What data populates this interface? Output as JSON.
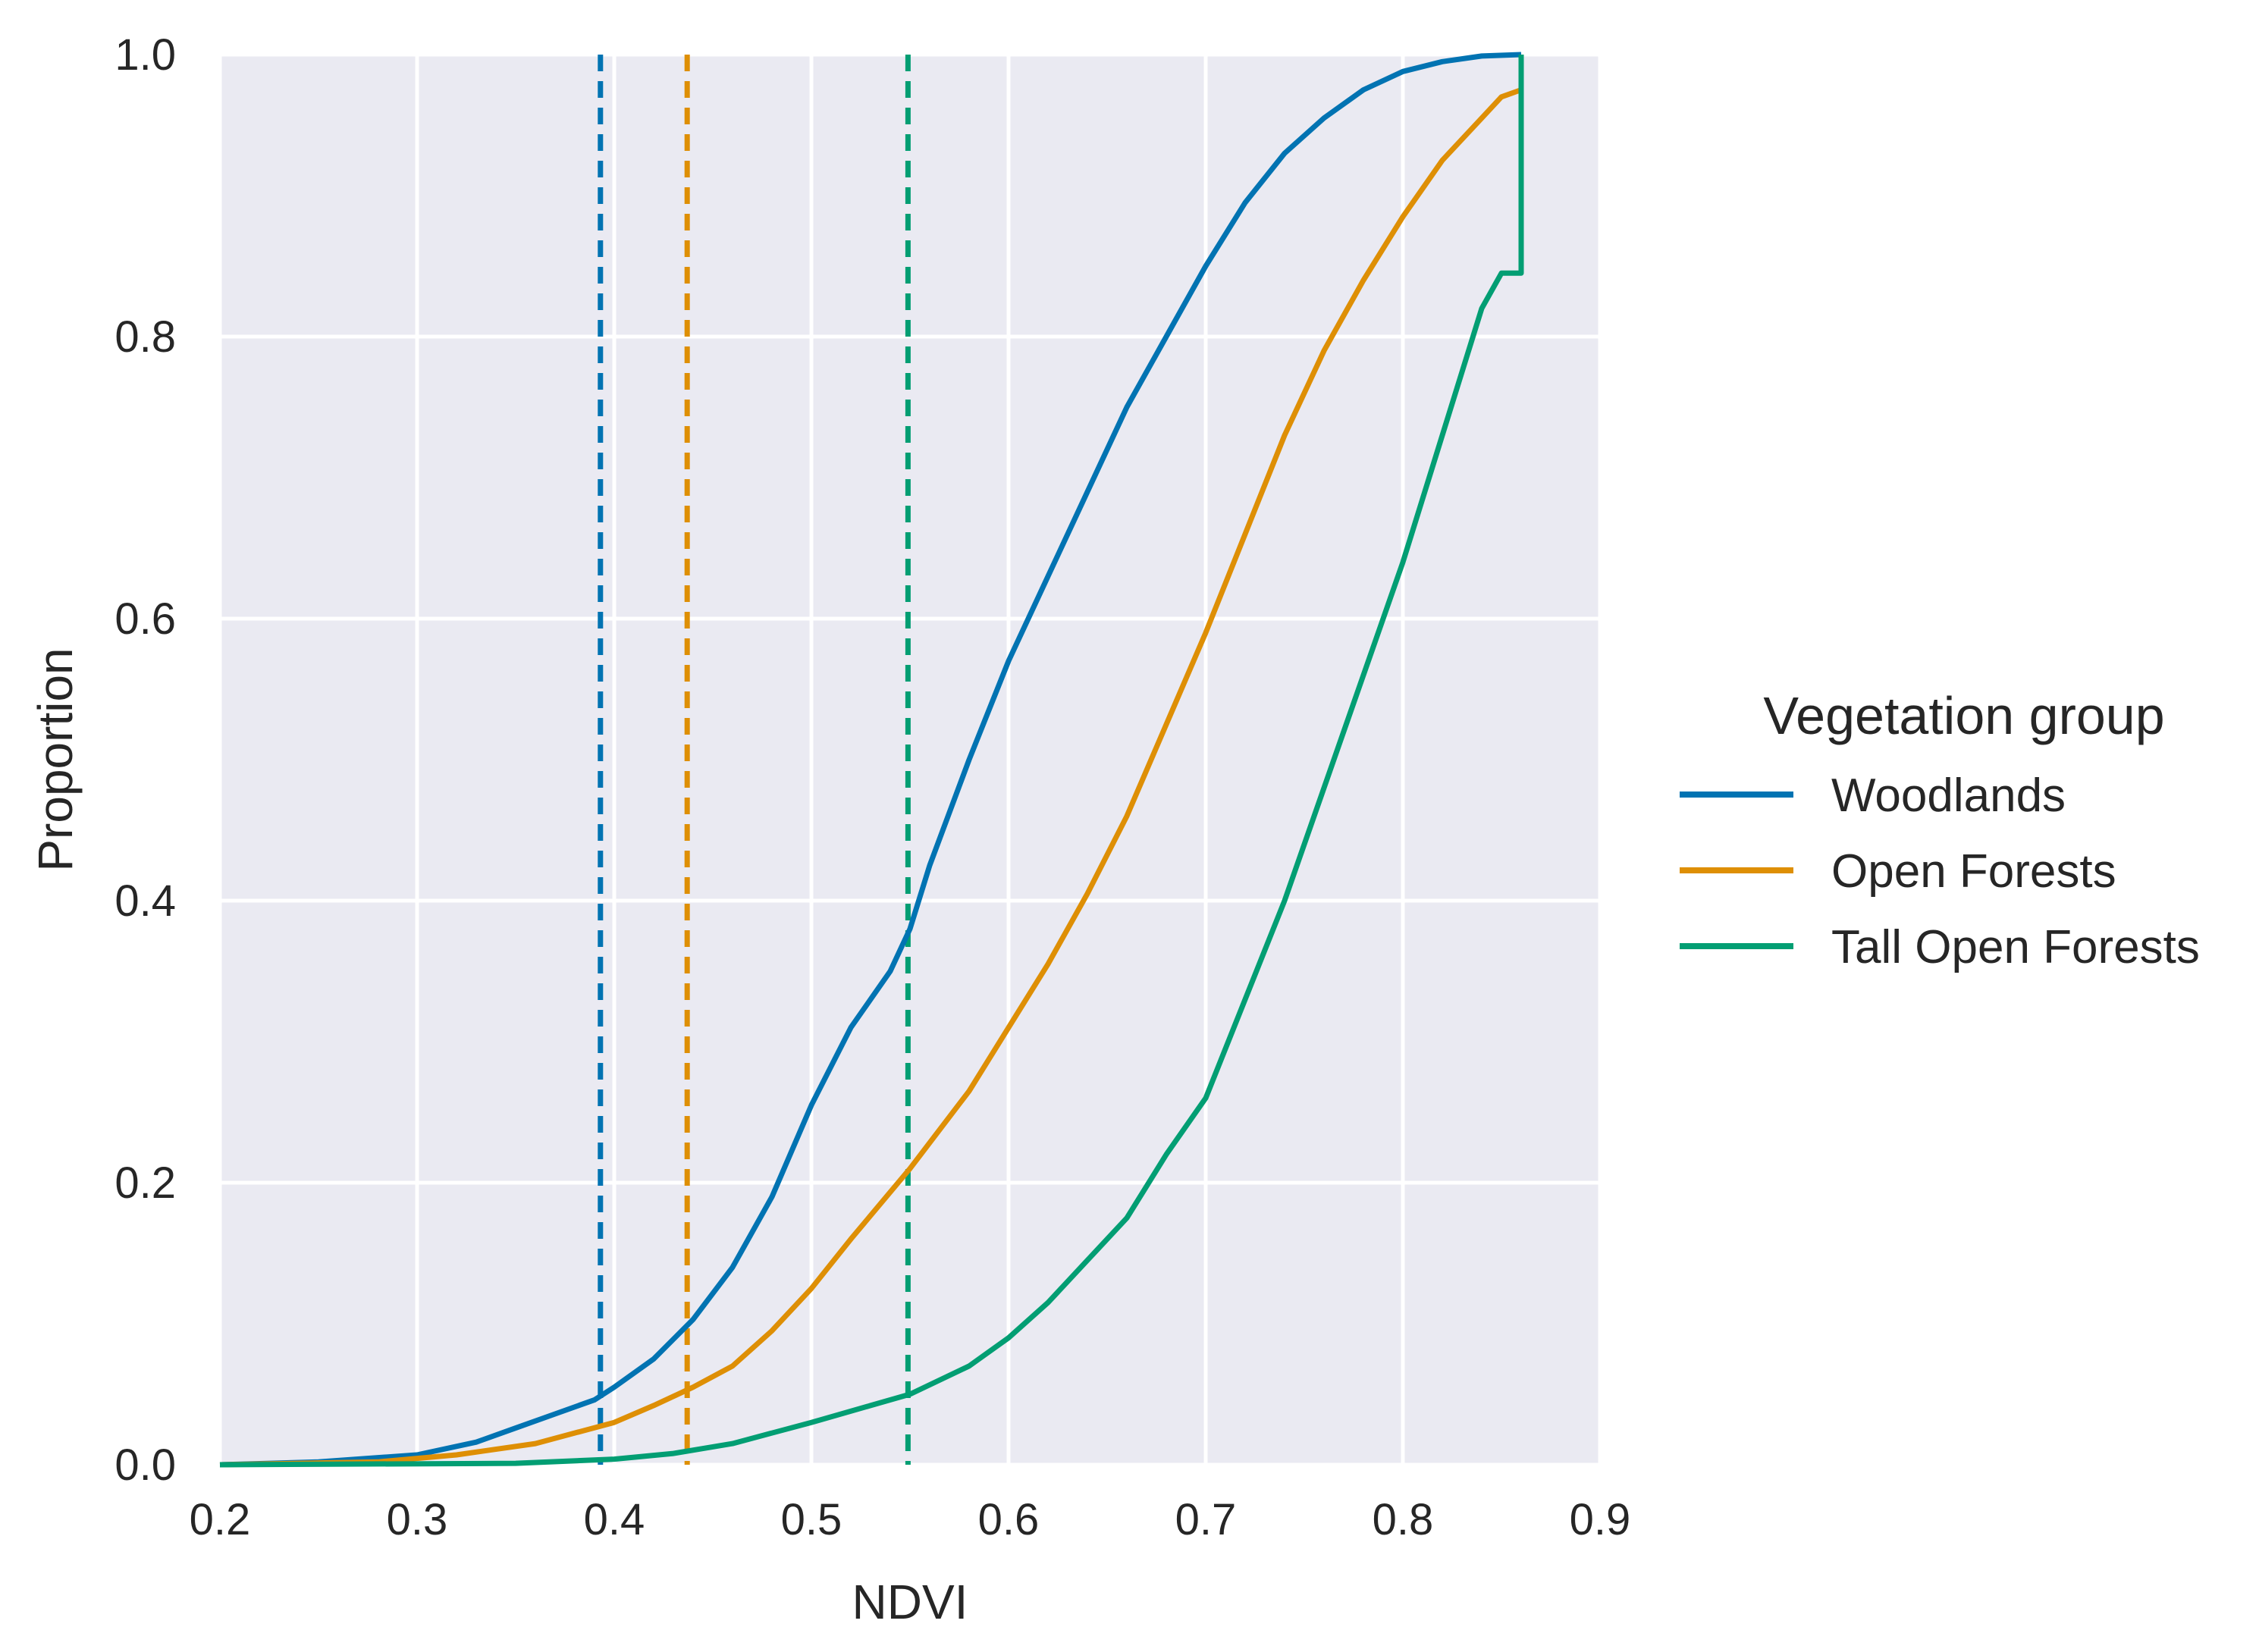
{
  "chart_data": {
    "type": "line",
    "subtype": "ecdf",
    "title": "",
    "xlabel": "NDVI",
    "ylabel": "Proportion",
    "xlim": [
      0.2,
      0.9
    ],
    "ylim": [
      0.0,
      1.0
    ],
    "xticks": [
      "0.2",
      "0.3",
      "0.4",
      "0.5",
      "0.6",
      "0.7",
      "0.8",
      "0.9"
    ],
    "yticks": [
      "0.0",
      "0.2",
      "0.4",
      "0.6",
      "0.8",
      "1.0"
    ],
    "grid": true,
    "background": "#eaeaf2",
    "legend": {
      "title": "Vegetation group",
      "position": "right"
    },
    "series": [
      {
        "name": "Woodlands",
        "color": "#0173b2",
        "x": [
          0.2,
          0.25,
          0.3,
          0.33,
          0.35,
          0.37,
          0.39,
          0.4,
          0.42,
          0.44,
          0.46,
          0.48,
          0.5,
          0.52,
          0.54,
          0.55,
          0.56,
          0.58,
          0.6,
          0.62,
          0.64,
          0.66,
          0.68,
          0.7,
          0.72,
          0.74,
          0.76,
          0.78,
          0.8,
          0.82,
          0.84,
          0.86
        ],
        "y": [
          0.0,
          0.002,
          0.007,
          0.016,
          0.026,
          0.036,
          0.046,
          0.055,
          0.075,
          0.103,
          0.14,
          0.19,
          0.255,
          0.31,
          0.35,
          0.38,
          0.425,
          0.5,
          0.57,
          0.63,
          0.69,
          0.75,
          0.8,
          0.85,
          0.895,
          0.93,
          0.955,
          0.975,
          0.988,
          0.995,
          0.999,
          1.0
        ],
        "threshold": 0.393
      },
      {
        "name": "Open Forests",
        "color": "#de8f05",
        "x": [
          0.2,
          0.28,
          0.32,
          0.36,
          0.4,
          0.42,
          0.44,
          0.46,
          0.48,
          0.5,
          0.52,
          0.55,
          0.58,
          0.6,
          0.62,
          0.64,
          0.66,
          0.68,
          0.7,
          0.72,
          0.74,
          0.76,
          0.78,
          0.8,
          0.82,
          0.84,
          0.85,
          0.86
        ],
        "y": [
          0.0,
          0.002,
          0.007,
          0.015,
          0.03,
          0.042,
          0.055,
          0.07,
          0.095,
          0.125,
          0.16,
          0.21,
          0.265,
          0.31,
          0.355,
          0.405,
          0.46,
          0.525,
          0.59,
          0.66,
          0.73,
          0.79,
          0.84,
          0.885,
          0.925,
          0.955,
          0.97,
          0.975
        ],
        "threshold": 0.437
      },
      {
        "name": "Tall Open Forests",
        "color": "#029e73",
        "x": [
          0.2,
          0.35,
          0.4,
          0.43,
          0.46,
          0.5,
          0.53,
          0.55,
          0.58,
          0.6,
          0.62,
          0.64,
          0.66,
          0.68,
          0.7,
          0.72,
          0.74,
          0.76,
          0.78,
          0.8,
          0.82,
          0.84,
          0.85,
          0.86
        ],
        "y": [
          0.0,
          0.001,
          0.004,
          0.008,
          0.015,
          0.03,
          0.042,
          0.05,
          0.07,
          0.09,
          0.115,
          0.145,
          0.175,
          0.22,
          0.26,
          0.33,
          0.4,
          0.48,
          0.56,
          0.64,
          0.73,
          0.82,
          0.845,
          0.845
        ],
        "threshold": 0.549
      }
    ]
  }
}
